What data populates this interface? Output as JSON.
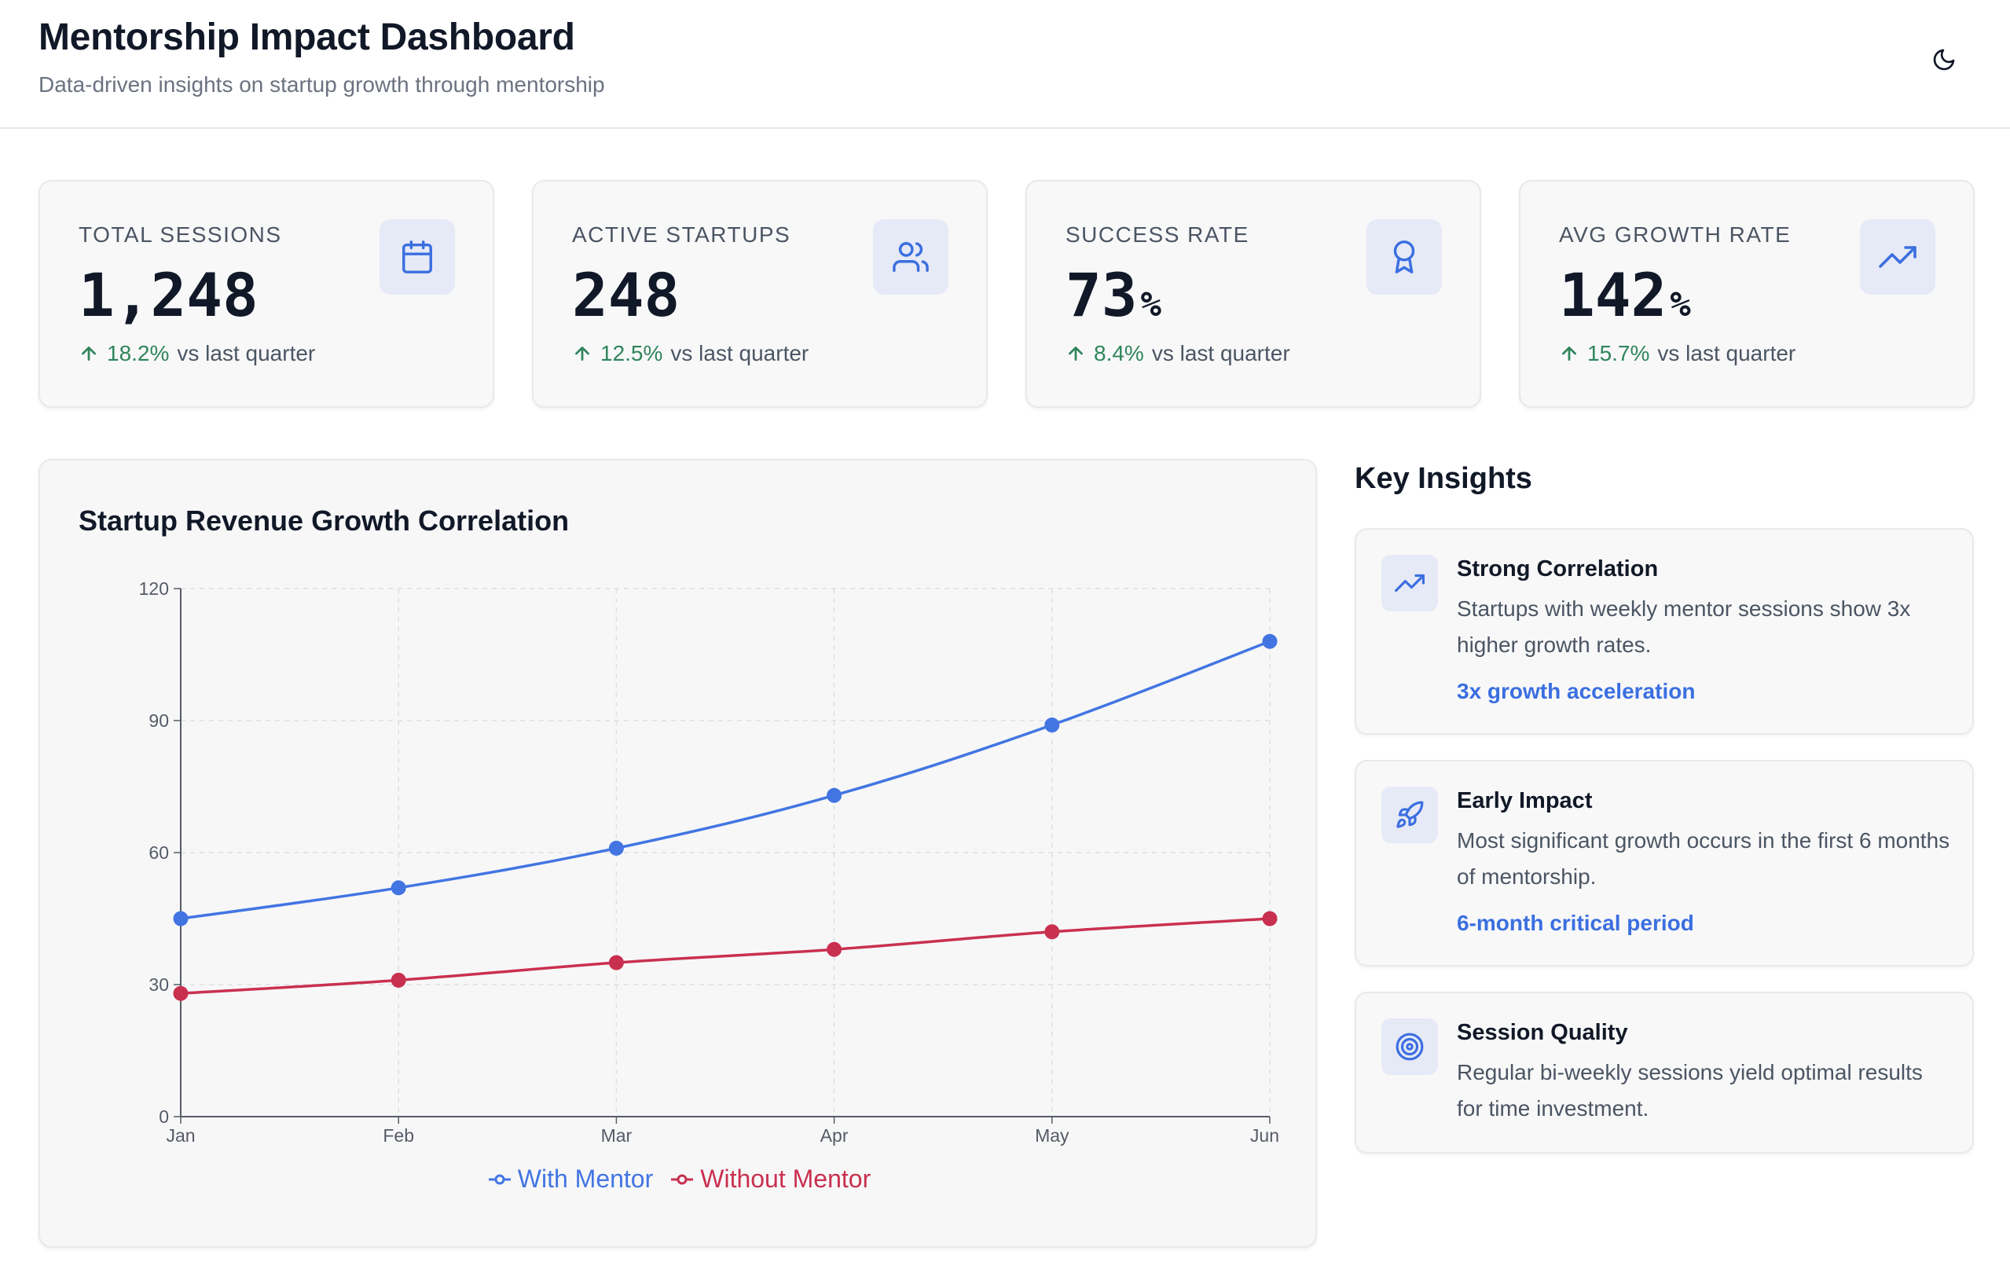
{
  "header": {
    "title": "Mentorship Impact Dashboard",
    "subtitle": "Data-driven insights on startup growth through mentorship",
    "theme_toggle_icon": "moon-icon"
  },
  "stats": [
    {
      "label": "TOTAL SESSIONS",
      "value": "1,248",
      "unit": "",
      "change": "18.2%",
      "suffix": "vs last quarter",
      "icon": "calendar-icon"
    },
    {
      "label": "ACTIVE STARTUPS",
      "value": "248",
      "unit": "",
      "change": "12.5%",
      "suffix": "vs last quarter",
      "icon": "users-icon"
    },
    {
      "label": "SUCCESS RATE",
      "value": "73",
      "unit": "%",
      "change": "8.4%",
      "suffix": "vs last quarter",
      "icon": "award-icon"
    },
    {
      "label": "AVG GROWTH RATE",
      "value": "142",
      "unit": "%",
      "change": "15.7%",
      "suffix": "vs last quarter",
      "icon": "trending-up-icon"
    }
  ],
  "chart_data": {
    "type": "line",
    "title": "Startup Revenue Growth Correlation",
    "categories": [
      "Jan",
      "Feb",
      "Mar",
      "Apr",
      "May",
      "Jun"
    ],
    "series": [
      {
        "name": "With Mentor",
        "color": "#4275e2",
        "values": [
          45,
          52,
          61,
          73,
          89,
          108
        ]
      },
      {
        "name": "Without Mentor",
        "color": "#c9304f",
        "values": [
          28,
          31,
          35,
          38,
          42,
          45
        ]
      }
    ],
    "yticks": [
      "0",
      "30",
      "60",
      "90",
      "120"
    ],
    "ylim": [
      0,
      120
    ],
    "grid": true,
    "legend_position": "bottom-center",
    "xlabel": "",
    "ylabel": ""
  },
  "insights": {
    "title": "Key Insights",
    "items": [
      {
        "title": "Strong Correlation",
        "description": "Startups with weekly mentor sessions show 3x higher growth rates.",
        "tag": "3x growth acceleration",
        "icon": "trending-up-icon"
      },
      {
        "title": "Early Impact",
        "description": "Most significant growth occurs in the first 6 months of mentorship.",
        "tag": "6-month critical period",
        "icon": "rocket-icon"
      },
      {
        "title": "Session Quality",
        "description": "Regular bi-weekly sessions yield optimal results for time investment.",
        "tag": "",
        "icon": "target-icon"
      }
    ]
  },
  "colors": {
    "accent": "#3b6fe0",
    "positive": "#2f855a",
    "with_mentor": "#4275e2",
    "without_mentor": "#c9304f"
  }
}
